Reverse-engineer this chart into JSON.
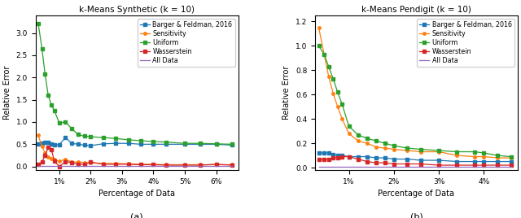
{
  "left": {
    "title": "k-Means Synthetic (k = 10)",
    "xlabel": "Percentage of Data",
    "ylabel": "Relative Error",
    "x_tick_positions": [
      1.0,
      2.0,
      3.0,
      4.0,
      5.0,
      6.0
    ],
    "x_tick_labels": [
      "1%",
      "2%",
      "3%",
      "4%",
      "5%",
      "6%"
    ],
    "x_values": [
      0.33,
      0.45,
      0.55,
      0.65,
      0.75,
      0.85,
      1.0,
      1.2,
      1.4,
      1.6,
      1.8,
      2.0,
      2.4,
      2.8,
      3.2,
      3.6,
      4.0,
      4.4,
      5.0,
      5.5,
      6.0,
      6.5
    ],
    "barger": [
      0.5,
      0.52,
      0.54,
      0.55,
      0.5,
      0.48,
      0.49,
      0.65,
      0.52,
      0.5,
      0.48,
      0.47,
      0.51,
      0.52,
      0.52,
      0.5,
      0.5,
      0.5,
      0.5,
      0.5,
      0.5,
      0.48
    ],
    "sensitivity": [
      0.7,
      0.45,
      0.3,
      0.22,
      0.18,
      0.15,
      0.12,
      0.16,
      0.1,
      0.1,
      0.09,
      0.08,
      0.07,
      0.07,
      0.06,
      0.05,
      0.05,
      0.04,
      0.04,
      0.04,
      0.04,
      0.04
    ],
    "uniform": [
      3.22,
      2.65,
      2.07,
      1.6,
      1.38,
      1.25,
      0.98,
      1.0,
      0.85,
      0.72,
      0.68,
      0.67,
      0.65,
      0.63,
      0.6,
      0.58,
      0.56,
      0.55,
      0.52,
      0.52,
      0.51,
      0.5
    ],
    "wasserstein": [
      0.05,
      0.1,
      0.25,
      0.43,
      0.38,
      0.12,
      0.0,
      0.11,
      0.09,
      0.05,
      0.05,
      0.1,
      0.05,
      0.05,
      0.05,
      0.04,
      0.04,
      0.03,
      0.03,
      0.03,
      0.05,
      0.03
    ],
    "alldata": [
      0.01,
      0.01,
      0.01,
      0.01,
      0.01,
      0.01,
      0.01,
      0.01,
      0.01,
      0.01,
      0.01,
      0.01,
      0.01,
      0.01,
      0.01,
      0.01,
      0.01,
      0.01,
      0.01,
      0.01,
      0.01,
      0.01
    ],
    "xlim": [
      0.25,
      6.7
    ],
    "ylim": [
      -0.08,
      3.4
    ]
  },
  "right": {
    "title": "k-Means Pendigit (k = 10)",
    "xlabel": "Percentage of Data",
    "ylabel": "Relative Error",
    "x_tick_positions": [
      1.0,
      2.0,
      3.0,
      4.0
    ],
    "x_tick_labels": [
      "1%",
      "2%",
      "3%",
      "4%"
    ],
    "x_values": [
      0.33,
      0.45,
      0.55,
      0.65,
      0.75,
      0.85,
      1.0,
      1.2,
      1.4,
      1.6,
      1.8,
      2.0,
      2.3,
      2.6,
      3.0,
      3.4,
      3.8,
      4.0,
      4.3,
      4.6
    ],
    "barger": [
      0.12,
      0.12,
      0.12,
      0.11,
      0.1,
      0.1,
      0.09,
      0.09,
      0.09,
      0.08,
      0.08,
      0.07,
      0.07,
      0.06,
      0.06,
      0.05,
      0.05,
      0.05,
      0.05,
      0.05
    ],
    "sensitivity": [
      1.15,
      0.93,
      0.75,
      0.61,
      0.5,
      0.4,
      0.28,
      0.22,
      0.2,
      0.17,
      0.16,
      0.15,
      0.14,
      0.13,
      0.13,
      0.1,
      0.09,
      0.09,
      0.08,
      0.08
    ],
    "uniform": [
      1.0,
      0.93,
      0.83,
      0.73,
      0.62,
      0.52,
      0.34,
      0.27,
      0.24,
      0.22,
      0.2,
      0.18,
      0.16,
      0.15,
      0.14,
      0.13,
      0.13,
      0.12,
      0.1,
      0.09
    ],
    "wasserstein": [
      0.07,
      0.07,
      0.07,
      0.08,
      0.08,
      0.09,
      0.09,
      0.07,
      0.05,
      0.04,
      0.04,
      0.03,
      0.03,
      0.03,
      0.02,
      0.02,
      0.02,
      0.02,
      0.02,
      0.02
    ],
    "alldata": [
      0.01,
      0.01,
      0.01,
      0.01,
      0.01,
      0.01,
      0.01,
      0.01,
      0.01,
      0.01,
      0.01,
      0.01,
      0.01,
      0.01,
      0.01,
      0.01,
      0.01,
      0.01,
      0.01,
      0.01
    ],
    "xlim": [
      0.25,
      4.75
    ],
    "ylim": [
      -0.02,
      1.25
    ]
  },
  "colors": {
    "barger": "#1f77b4",
    "sensitivity": "#ff7f0e",
    "uniform": "#2ca02c",
    "wasserstein": "#d62728",
    "alldata": "#9467bd"
  },
  "legend_labels": [
    "Barger & Feldman, 2016",
    "Sensitivity",
    "Uniform",
    "Wasserstein",
    "All Data"
  ],
  "subplot_labels": [
    "(a)",
    "(b)"
  ],
  "figsize": [
    6.4,
    2.68
  ],
  "dpi": 100
}
